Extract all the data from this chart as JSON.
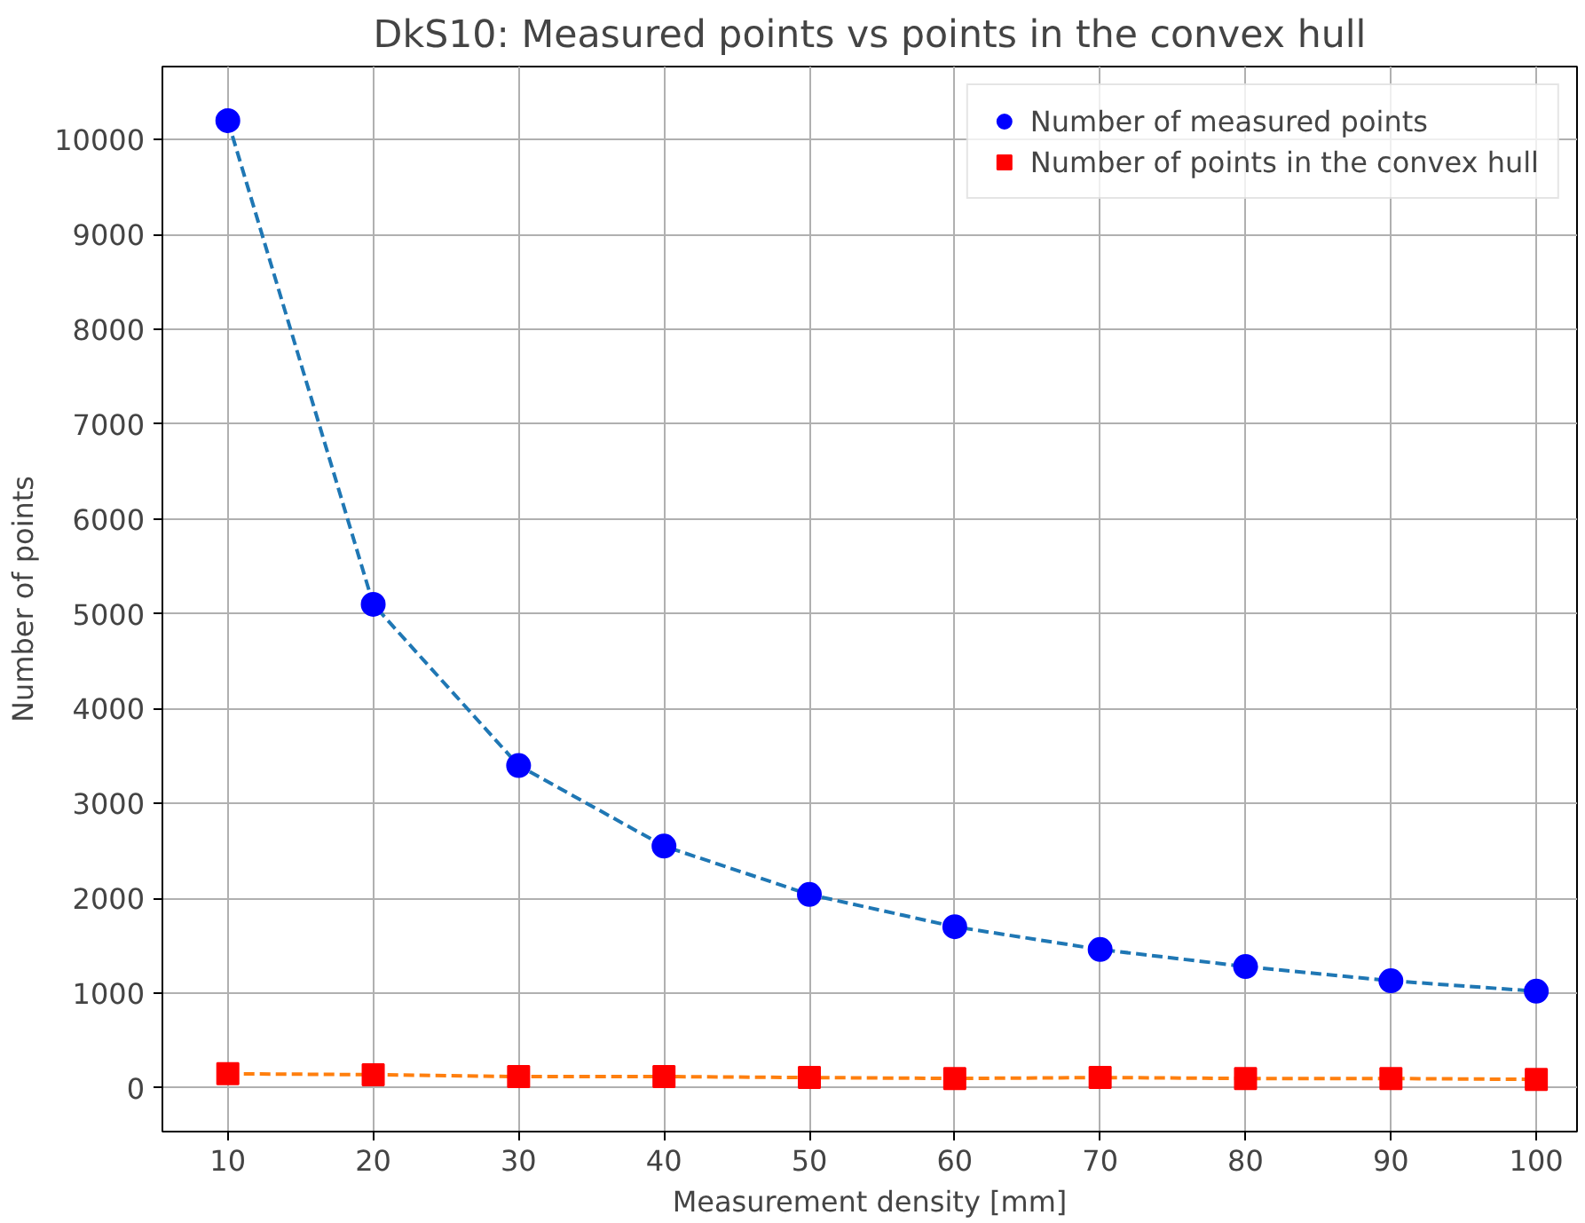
{
  "chart_data": {
    "type": "scatter",
    "title": "DkS10: Measured points vs points in the convex hull",
    "xlabel": "Measurement density [mm]",
    "ylabel": "Number of points",
    "x": [
      10,
      20,
      30,
      40,
      50,
      60,
      70,
      80,
      90,
      100
    ],
    "series": [
      {
        "type": "line",
        "color": "#1f77b4",
        "line_style": "dashed",
        "marker": "none",
        "values": [
          10200,
          5100,
          3400,
          2550,
          2040,
          1700,
          1460,
          1280,
          1130,
          1020
        ]
      },
      {
        "type": "line",
        "color": "#ff7f0e",
        "line_style": "dashed",
        "marker": "none",
        "values": [
          150,
          140,
          120,
          120,
          110,
          100,
          110,
          100,
          100,
          90
        ]
      },
      {
        "name": "Number of measured points",
        "color": "#0000ff",
        "marker": "circle",
        "values": [
          10200,
          5100,
          3400,
          2550,
          2040,
          1700,
          1460,
          1280,
          1130,
          1020
        ]
      },
      {
        "name": "Number of points in the convex hull",
        "color": "#ff0000",
        "marker": "square",
        "values": [
          150,
          140,
          120,
          120,
          110,
          100,
          110,
          100,
          100,
          90
        ]
      }
    ],
    "xlim": [
      5.5,
      102.8
    ],
    "ylim": [
      -460,
      10770
    ],
    "xticks": [
      10,
      20,
      30,
      40,
      50,
      60,
      70,
      80,
      90,
      100
    ],
    "yticks": [
      0,
      1000,
      2000,
      3000,
      4000,
      5000,
      6000,
      7000,
      8000,
      9000,
      10000
    ],
    "grid": true,
    "legend": "top right"
  }
}
